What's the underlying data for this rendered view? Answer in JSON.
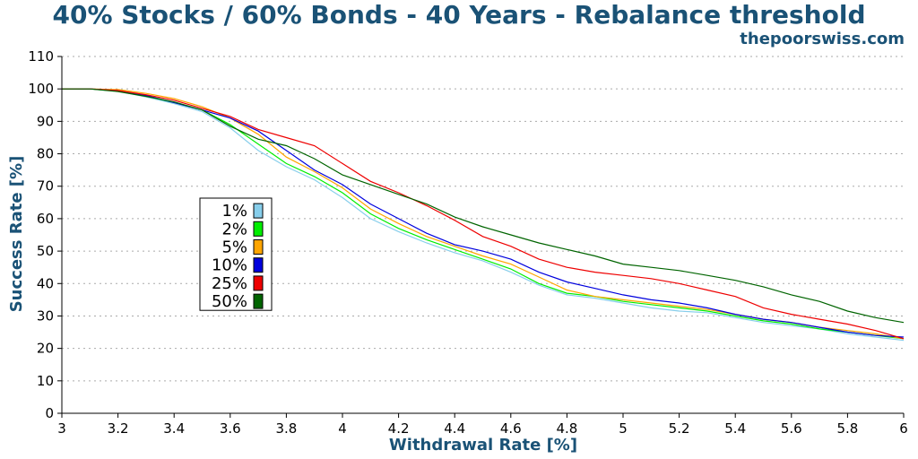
{
  "chart_data": {
    "type": "line",
    "title": "40% Stocks / 60% Bonds - 40 Years - Rebalance threshold",
    "subtitle": "thepoorswiss.com",
    "xlabel": "Withdrawal Rate [%]",
    "ylabel": "Success Rate [%]",
    "xlim": [
      3,
      6
    ],
    "ylim": [
      0,
      110
    ],
    "x_ticks": [
      "3",
      "3.2",
      "3.4",
      "3.6",
      "3.8",
      "4",
      "4.2",
      "4.4",
      "4.6",
      "4.8",
      "5",
      "5.2",
      "5.4",
      "5.6",
      "5.8",
      "6"
    ],
    "y_ticks": [
      "0",
      "10",
      "20",
      "30",
      "40",
      "50",
      "60",
      "70",
      "80",
      "90",
      "100",
      "110"
    ],
    "grid": "horizontal dotted",
    "legend_position": "left-center",
    "x": [
      3.0,
      3.1,
      3.2,
      3.3,
      3.4,
      3.5,
      3.6,
      3.7,
      3.8,
      3.9,
      4.0,
      4.1,
      4.2,
      4.3,
      4.4,
      4.5,
      4.6,
      4.7,
      4.8,
      4.9,
      5.0,
      5.1,
      5.2,
      5.3,
      5.4,
      5.5,
      5.6,
      5.7,
      5.8,
      5.9,
      6.0
    ],
    "series": [
      {
        "name": "1%",
        "color": "#87ceeb",
        "values": [
          100,
          100,
          99.3,
          97.5,
          95.5,
          93,
          88,
          81,
          76,
          72,
          66.5,
          60,
          56,
          52.5,
          49.5,
          47,
          43.5,
          39.5,
          36.5,
          35.5,
          34,
          32.5,
          31.5,
          31,
          29.5,
          28,
          27,
          26,
          24.5,
          23.5,
          22.5
        ]
      },
      {
        "name": "2%",
        "color": "#00ee00",
        "values": [
          100,
          100,
          99.3,
          97.8,
          95.8,
          93.5,
          89,
          83,
          77,
          73,
          68,
          61.5,
          57,
          53.5,
          50.5,
          47.5,
          44.5,
          40,
          37,
          36,
          34.5,
          33.5,
          32.5,
          31.5,
          30,
          28.5,
          27.5,
          26,
          25,
          24,
          23
        ]
      },
      {
        "name": "5%",
        "color": "#ffa500",
        "values": [
          100,
          100,
          99.8,
          98.6,
          97,
          94.5,
          91,
          86,
          79,
          74.5,
          69.5,
          63,
          58.5,
          54.5,
          51.5,
          48.5,
          46,
          42,
          38,
          36,
          35,
          34,
          33,
          32,
          30.5,
          29,
          28,
          26.5,
          25.5,
          24.5,
          23
        ]
      },
      {
        "name": "10%",
        "color": "#0000dd",
        "values": [
          100,
          100,
          99.5,
          98,
          95.8,
          93.5,
          91,
          87,
          81,
          75,
          70.5,
          64.5,
          60,
          55.5,
          52,
          50,
          47.5,
          43.5,
          40.5,
          38.5,
          36.5,
          35,
          34,
          32.5,
          30.5,
          29,
          28,
          26.5,
          25,
          24,
          23.5
        ]
      },
      {
        "name": "25%",
        "color": "#ee0000",
        "values": [
          100,
          100,
          99.5,
          98.2,
          96.5,
          94,
          91.5,
          87.5,
          85,
          82.5,
          77,
          71.5,
          68,
          64,
          59.5,
          54.5,
          51.5,
          47.5,
          45,
          43.5,
          42.5,
          41.5,
          40,
          38,
          36,
          32.5,
          30.5,
          29,
          27.5,
          25.5,
          23
        ]
      },
      {
        "name": "50%",
        "color": "#006400",
        "values": [
          100,
          100,
          99.2,
          97.7,
          96,
          93.5,
          88.5,
          84.5,
          82.5,
          78.5,
          73.5,
          70.5,
          67.5,
          64.5,
          60.5,
          57.5,
          55,
          52.5,
          50.5,
          48.5,
          46,
          45,
          44,
          42.5,
          41,
          39,
          36.5,
          34.5,
          31.5,
          29.5,
          28
        ]
      }
    ]
  }
}
